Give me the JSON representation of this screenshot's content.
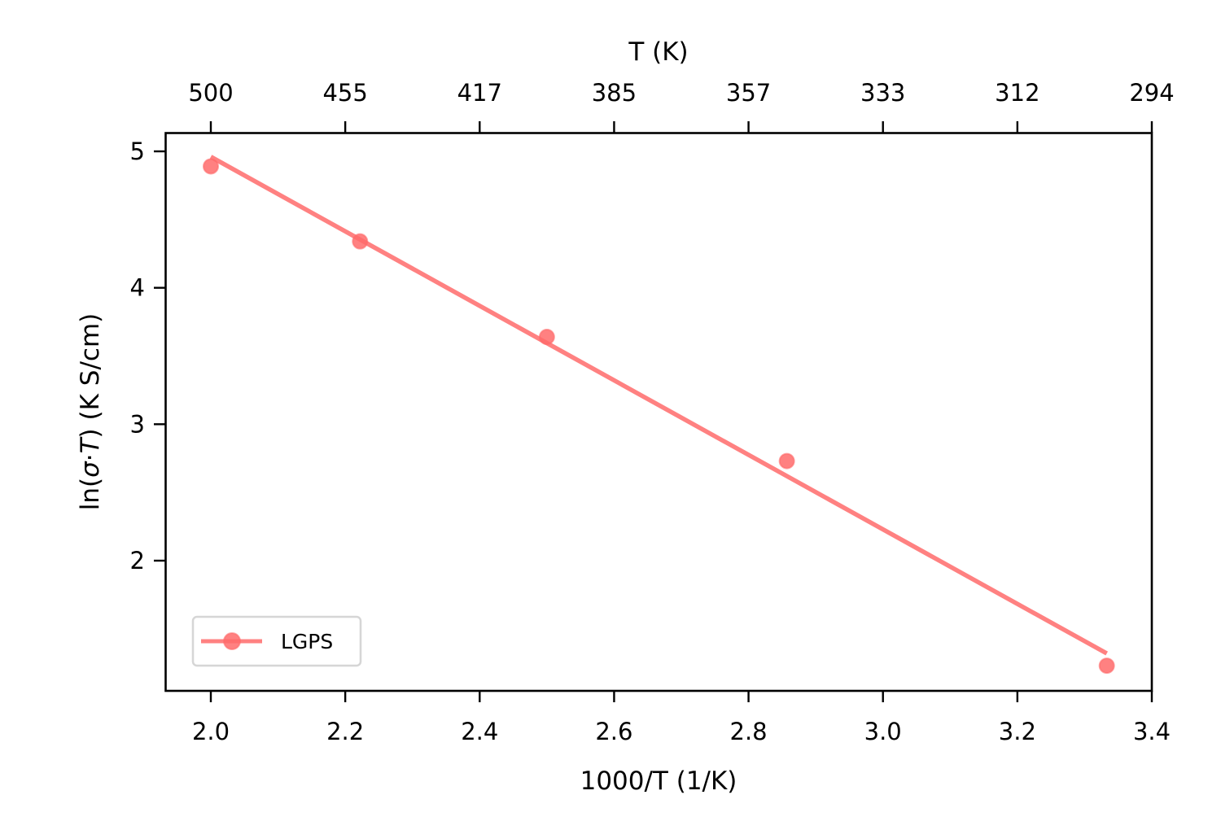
{
  "chart_data": {
    "type": "scatter",
    "title": "",
    "xlabel": "1000/T (1/K)",
    "ylabel": "ln(σ·T) (K S/cm)",
    "ylabel_parts": {
      "prefix": "ln(",
      "sigma": "σ",
      "dot": "·",
      "T": "T",
      "suffix": ") (K S/cm)"
    },
    "top_xlabel": "T (K)",
    "xlim": [
      1.933,
      3.4
    ],
    "ylim": [
      1.08,
      5.14
    ],
    "x_ticks": [
      2.0,
      2.2,
      2.4,
      2.6,
      2.8,
      3.0,
      3.2,
      3.4
    ],
    "x_tick_labels": [
      "2.0",
      "2.2",
      "2.4",
      "2.6",
      "2.8",
      "3.0",
      "3.2",
      "3.4"
    ],
    "y_ticks": [
      2,
      3,
      4,
      5
    ],
    "y_tick_labels": [
      "2",
      "3",
      "4",
      "5"
    ],
    "top_x_ticks": [
      2.0,
      2.2,
      2.4,
      2.6,
      2.8,
      3.0,
      3.2,
      3.4
    ],
    "top_x_tick_labels": [
      "500",
      "455",
      "417",
      "385",
      "357",
      "333",
      "312",
      "294"
    ],
    "grid": false,
    "legend_position": "lower left",
    "series": [
      {
        "name": "LGPS",
        "color": "#ff6b6b",
        "points": [
          {
            "x": 2.0,
            "y": 4.89
          },
          {
            "x": 2.222,
            "y": 4.34
          },
          {
            "x": 2.5,
            "y": 3.64
          },
          {
            "x": 2.857,
            "y": 2.73
          },
          {
            "x": 3.333,
            "y": 1.23
          }
        ],
        "fit_line": {
          "x": [
            2.0,
            3.333
          ],
          "y": [
            4.96,
            1.32
          ]
        }
      }
    ]
  },
  "legend": {
    "items": [
      {
        "label": "LGPS"
      }
    ]
  }
}
